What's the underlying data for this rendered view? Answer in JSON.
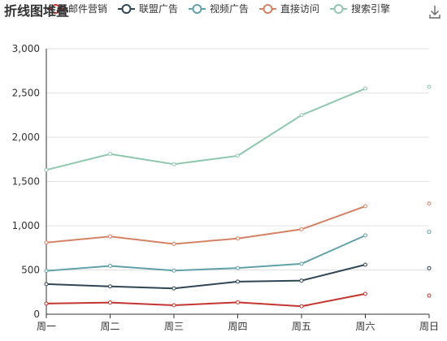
{
  "chart_data": {
    "type": "line",
    "stacked": true,
    "title": "折线图堆叠",
    "categories": [
      "周一",
      "周二",
      "周三",
      "周四",
      "周五",
      "周六",
      "周日"
    ],
    "ylim": [
      0,
      3000
    ],
    "yticks": [
      0,
      500,
      1000,
      1500,
      2000,
      2500,
      3000
    ],
    "ytick_labels": [
      "0",
      "500",
      "1,000",
      "1,500",
      "2,000",
      "2,500",
      "3,000"
    ],
    "grid": true,
    "legend_position": "top",
    "series": [
      {
        "name": "邮件营销",
        "color": "#c23531",
        "values": [
          120,
          132,
          101,
          134,
          90,
          230,
          210
        ]
      },
      {
        "name": "联盟广告",
        "color": "#2f4554",
        "values": [
          220,
          182,
          191,
          234,
          290,
          330,
          310
        ]
      },
      {
        "name": "视频广告",
        "color": "#61a0a8",
        "values": [
          150,
          232,
          201,
          154,
          190,
          330,
          410
        ]
      },
      {
        "name": "直接访问",
        "color": "#d48265",
        "values": [
          320,
          332,
          301,
          334,
          390,
          330,
          320
        ]
      },
      {
        "name": "搜索引擎",
        "color": "#91c7ae",
        "values": [
          820,
          932,
          901,
          934,
          1290,
          1330,
          1320
        ]
      }
    ]
  },
  "toolbox": {
    "save_icon": "download-icon"
  }
}
